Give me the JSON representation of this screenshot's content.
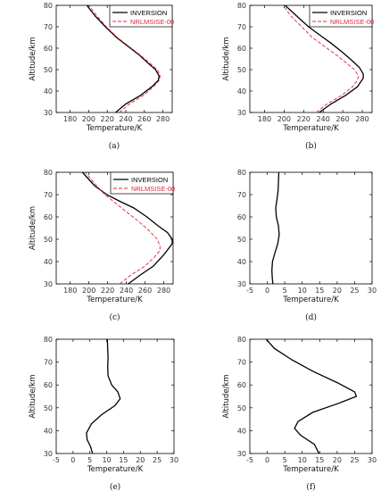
{
  "chart_data": [
    {
      "type": "line",
      "caption": "(a)",
      "xlabel": "Temperature/K",
      "ylabel": "Altitude/km",
      "xlim": [
        165,
        290
      ],
      "ylim": [
        30,
        80
      ],
      "xticks": [
        180,
        200,
        220,
        240,
        260,
        280
      ],
      "yticks": [
        30,
        40,
        50,
        60,
        70,
        80
      ],
      "legend": "top-right",
      "series": [
        {
          "name": "INVERSION",
          "color": "#000000",
          "dash": "solid",
          "points": [
            [
              229,
              30
            ],
            [
              240,
              34
            ],
            [
              256,
              38
            ],
            [
              268,
              42
            ],
            [
              275,
              45
            ],
            [
              276,
              47
            ],
            [
              272,
              50
            ],
            [
              264,
              53
            ],
            [
              254,
              57
            ],
            [
              242,
              61
            ],
            [
              230,
              65
            ],
            [
              218,
              70
            ],
            [
              207,
              75
            ],
            [
              198,
              80
            ]
          ]
        },
        {
          "name": "NRLMSISE-00",
          "color": "#e0283c",
          "dash": "dashed",
          "points": [
            [
              233,
              30
            ],
            [
              244,
              34
            ],
            [
              259,
              38
            ],
            [
              270,
              42
            ],
            [
              276,
              45
            ],
            [
              277,
              47
            ],
            [
              274,
              50
            ],
            [
              266,
              53
            ],
            [
              255,
              57
            ],
            [
              243,
              61
            ],
            [
              231,
              65
            ],
            [
              219,
              70
            ],
            [
              209,
              75
            ],
            [
              200,
              80
            ]
          ]
        }
      ]
    },
    {
      "type": "line",
      "caption": "(b)",
      "xlabel": "Temperature/K",
      "ylabel": "Altitude/km",
      "xlim": [
        165,
        290
      ],
      "ylim": [
        30,
        80
      ],
      "xticks": [
        180,
        200,
        220,
        240,
        260,
        280
      ],
      "yticks": [
        30,
        40,
        50,
        60,
        70,
        80
      ],
      "legend": "top-right",
      "series": [
        {
          "name": "INVERSION",
          "color": "#000000",
          "dash": "solid",
          "points": [
            [
              236,
              30
            ],
            [
              248,
              34
            ],
            [
              263,
              38
            ],
            [
              275,
              42
            ],
            [
              281,
              46
            ],
            [
              281,
              48
            ],
            [
              277,
              51
            ],
            [
              270,
              54
            ],
            [
              260,
              58
            ],
            [
              249,
              62
            ],
            [
              237,
              66
            ],
            [
              225,
              70
            ],
            [
              213,
              75
            ],
            [
              201,
              80
            ]
          ]
        },
        {
          "name": "NRLMSISE-00",
          "color": "#e0283c",
          "dash": "dashed",
          "points": [
            [
              233,
              30
            ],
            [
              244,
              34
            ],
            [
              259,
              38
            ],
            [
              270,
              42
            ],
            [
              275,
              45
            ],
            [
              276,
              47
            ],
            [
              272,
              50
            ],
            [
              264,
              53
            ],
            [
              253,
              57
            ],
            [
              241,
              61
            ],
            [
              229,
              65
            ],
            [
              218,
              70
            ],
            [
              207,
              75
            ],
            [
              199,
              80
            ]
          ]
        }
      ]
    },
    {
      "type": "line",
      "caption": "(c)",
      "xlabel": "Temperature/K",
      "ylabel": "Altitude/km",
      "xlim": [
        165,
        290
      ],
      "ylim": [
        30,
        80
      ],
      "xticks": [
        180,
        200,
        220,
        240,
        260,
        280
      ],
      "yticks": [
        30,
        40,
        50,
        60,
        70,
        80
      ],
      "legend": "top-right",
      "series": [
        {
          "name": "INVERSION",
          "color": "#000000",
          "dash": "solid",
          "points": [
            [
              242,
              30
            ],
            [
              255,
              34
            ],
            [
              269,
              38
            ],
            [
              280,
              43
            ],
            [
              289,
              48
            ],
            [
              289,
              50
            ],
            [
              284,
              53
            ],
            [
              274,
              56
            ],
            [
              262,
              60
            ],
            [
              248,
              64
            ],
            [
              233,
              67
            ],
            [
              219,
              70
            ],
            [
              206,
              74
            ],
            [
              193,
              80
            ]
          ]
        },
        {
          "name": "NRLMSISE-00",
          "color": "#e0283c",
          "dash": "dashed",
          "points": [
            [
              233,
              30
            ],
            [
              245,
              34
            ],
            [
              260,
              38
            ],
            [
              270,
              42
            ],
            [
              276,
              45
            ],
            [
              276,
              47
            ],
            [
              273,
              50
            ],
            [
              264,
              54
            ],
            [
              253,
              58
            ],
            [
              241,
              62
            ],
            [
              229,
              66
            ],
            [
              217,
              70
            ],
            [
              206,
              75
            ],
            [
              196,
              80
            ]
          ]
        }
      ]
    },
    {
      "type": "line",
      "caption": "(d)",
      "xlabel": "Temperature/K",
      "ylabel": "",
      "xlim": [
        -5,
        30
      ],
      "ylim": [
        30,
        80
      ],
      "xticks": [
        -5,
        0,
        5,
        10,
        15,
        20,
        25,
        30
      ],
      "yticks": [
        30,
        40,
        50,
        60,
        70,
        80
      ],
      "legend": "none",
      "series": [
        {
          "name": "",
          "color": "#000000",
          "dash": "solid",
          "points": [
            [
              1.6,
              30
            ],
            [
              1.4,
              33
            ],
            [
              1.3,
              36
            ],
            [
              1.5,
              40
            ],
            [
              2.2,
              44
            ],
            [
              3.0,
              48
            ],
            [
              3.4,
              52
            ],
            [
              3.2,
              56
            ],
            [
              2.6,
              60
            ],
            [
              2.4,
              64
            ],
            [
              2.8,
              68
            ],
            [
              3.1,
              72
            ],
            [
              3.2,
              76
            ],
            [
              3.3,
              80
            ]
          ]
        }
      ]
    },
    {
      "type": "line",
      "caption": "(e)",
      "xlabel": "Temperature/K",
      "ylabel": "Altitude/km",
      "xlim": [
        -5,
        30
      ],
      "ylim": [
        30,
        80
      ],
      "xticks": [
        -5,
        0,
        5,
        10,
        15,
        20,
        25,
        30
      ],
      "yticks": [
        30,
        40,
        50,
        60,
        70,
        80
      ],
      "legend": "none",
      "series": [
        {
          "name": "",
          "color": "#000000",
          "dash": "solid",
          "points": [
            [
              5.8,
              30
            ],
            [
              5.2,
              33
            ],
            [
              4.2,
              36
            ],
            [
              4.0,
              39
            ],
            [
              5.5,
              43
            ],
            [
              8.5,
              47
            ],
            [
              12.5,
              51
            ],
            [
              14.0,
              54
            ],
            [
              13.3,
              57
            ],
            [
              11.5,
              60
            ],
            [
              10.4,
              64
            ],
            [
              10.3,
              68
            ],
            [
              10.4,
              72
            ],
            [
              10.3,
              76
            ],
            [
              10.2,
              80
            ]
          ]
        }
      ]
    },
    {
      "type": "line",
      "caption": "(f)",
      "xlabel": "Temperature/K",
      "ylabel": "Altitude/km",
      "xlim": [
        -5,
        30
      ],
      "ylim": [
        30,
        80
      ],
      "xticks": [
        -5,
        0,
        5,
        10,
        15,
        20,
        25,
        30
      ],
      "yticks": [
        30,
        40,
        50,
        60,
        70,
        80
      ],
      "legend": "none",
      "series": [
        {
          "name": "",
          "color": "#000000",
          "dash": "solid",
          "points": [
            [
              14.8,
              30
            ],
            [
              13.5,
              34
            ],
            [
              9.5,
              38
            ],
            [
              7.8,
              41
            ],
            [
              8.8,
              44
            ],
            [
              13.0,
              48
            ],
            [
              20.5,
              52
            ],
            [
              25.5,
              55
            ],
            [
              25.0,
              57
            ],
            [
              20.0,
              61
            ],
            [
              13.0,
              66
            ],
            [
              7.0,
              71
            ],
            [
              2.0,
              76
            ],
            [
              -0.3,
              80
            ]
          ]
        }
      ]
    }
  ]
}
